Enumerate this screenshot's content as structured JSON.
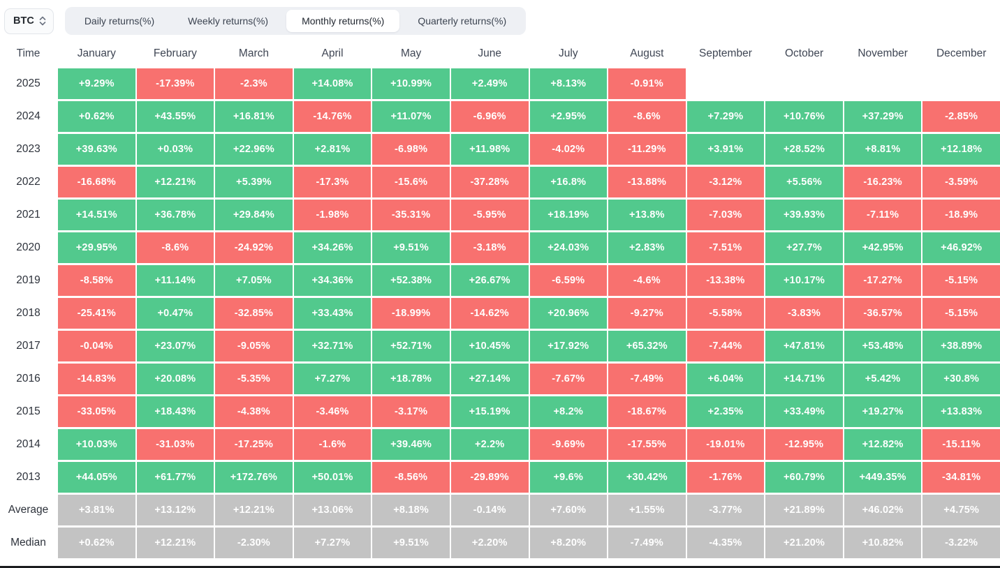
{
  "toolbar": {
    "symbol": "BTC",
    "tabs": [
      {
        "label": "Daily returns(%)",
        "active": false
      },
      {
        "label": "Weekly returns(%)",
        "active": false
      },
      {
        "label": "Monthly returns(%)",
        "active": true
      },
      {
        "label": "Quarterly returns(%)",
        "active": false
      }
    ]
  },
  "table": {
    "corner_header": "Time",
    "month_headers": [
      "January",
      "February",
      "March",
      "April",
      "May",
      "June",
      "July",
      "August",
      "September",
      "October",
      "November",
      "December"
    ],
    "rows": [
      {
        "label": "2025",
        "type": "year",
        "values": [
          "+9.29%",
          "-17.39%",
          "-2.3%",
          "+14.08%",
          "+10.99%",
          "+2.49%",
          "+8.13%",
          "-0.91%",
          "",
          "",
          "",
          ""
        ]
      },
      {
        "label": "2024",
        "type": "year",
        "values": [
          "+0.62%",
          "+43.55%",
          "+16.81%",
          "-14.76%",
          "+11.07%",
          "-6.96%",
          "+2.95%",
          "-8.6%",
          "+7.29%",
          "+10.76%",
          "+37.29%",
          "-2.85%"
        ]
      },
      {
        "label": "2023",
        "type": "year",
        "values": [
          "+39.63%",
          "+0.03%",
          "+22.96%",
          "+2.81%",
          "-6.98%",
          "+11.98%",
          "-4.02%",
          "-11.29%",
          "+3.91%",
          "+28.52%",
          "+8.81%",
          "+12.18%"
        ]
      },
      {
        "label": "2022",
        "type": "year",
        "values": [
          "-16.68%",
          "+12.21%",
          "+5.39%",
          "-17.3%",
          "-15.6%",
          "-37.28%",
          "+16.8%",
          "-13.88%",
          "-3.12%",
          "+5.56%",
          "-16.23%",
          "-3.59%"
        ]
      },
      {
        "label": "2021",
        "type": "year",
        "values": [
          "+14.51%",
          "+36.78%",
          "+29.84%",
          "-1.98%",
          "-35.31%",
          "-5.95%",
          "+18.19%",
          "+13.8%",
          "-7.03%",
          "+39.93%",
          "-7.11%",
          "-18.9%"
        ]
      },
      {
        "label": "2020",
        "type": "year",
        "values": [
          "+29.95%",
          "-8.6%",
          "-24.92%",
          "+34.26%",
          "+9.51%",
          "-3.18%",
          "+24.03%",
          "+2.83%",
          "-7.51%",
          "+27.7%",
          "+42.95%",
          "+46.92%"
        ]
      },
      {
        "label": "2019",
        "type": "year",
        "values": [
          "-8.58%",
          "+11.14%",
          "+7.05%",
          "+34.36%",
          "+52.38%",
          "+26.67%",
          "-6.59%",
          "-4.6%",
          "-13.38%",
          "+10.17%",
          "-17.27%",
          "-5.15%"
        ]
      },
      {
        "label": "2018",
        "type": "year",
        "values": [
          "-25.41%",
          "+0.47%",
          "-32.85%",
          "+33.43%",
          "-18.99%",
          "-14.62%",
          "+20.96%",
          "-9.27%",
          "-5.58%",
          "-3.83%",
          "-36.57%",
          "-5.15%"
        ]
      },
      {
        "label": "2017",
        "type": "year",
        "values": [
          "-0.04%",
          "+23.07%",
          "-9.05%",
          "+32.71%",
          "+52.71%",
          "+10.45%",
          "+17.92%",
          "+65.32%",
          "-7.44%",
          "+47.81%",
          "+53.48%",
          "+38.89%"
        ]
      },
      {
        "label": "2016",
        "type": "year",
        "values": [
          "-14.83%",
          "+20.08%",
          "-5.35%",
          "+7.27%",
          "+18.78%",
          "+27.14%",
          "-7.67%",
          "-7.49%",
          "+6.04%",
          "+14.71%",
          "+5.42%",
          "+30.8%"
        ]
      },
      {
        "label": "2015",
        "type": "year",
        "values": [
          "-33.05%",
          "+18.43%",
          "-4.38%",
          "-3.46%",
          "-3.17%",
          "+15.19%",
          "+8.2%",
          "-18.67%",
          "+2.35%",
          "+33.49%",
          "+19.27%",
          "+13.83%"
        ]
      },
      {
        "label": "2014",
        "type": "year",
        "values": [
          "+10.03%",
          "-31.03%",
          "-17.25%",
          "-1.6%",
          "+39.46%",
          "+2.2%",
          "-9.69%",
          "-17.55%",
          "-19.01%",
          "-12.95%",
          "+12.82%",
          "-15.11%"
        ]
      },
      {
        "label": "2013",
        "type": "year",
        "values": [
          "+44.05%",
          "+61.77%",
          "+172.76%",
          "+50.01%",
          "-8.56%",
          "-29.89%",
          "+9.6%",
          "+30.42%",
          "-1.76%",
          "+60.79%",
          "+449.35%",
          "-34.81%"
        ]
      },
      {
        "label": "Average",
        "type": "summary",
        "values": [
          "+3.81%",
          "+13.12%",
          "+12.21%",
          "+13.06%",
          "+8.18%",
          "-0.14%",
          "+7.60%",
          "+1.55%",
          "-3.77%",
          "+21.89%",
          "+46.02%",
          "+4.75%"
        ]
      },
      {
        "label": "Median",
        "type": "summary",
        "values": [
          "+0.62%",
          "+12.21%",
          "-2.30%",
          "+7.27%",
          "+9.51%",
          "+2.20%",
          "+8.20%",
          "-7.49%",
          "-4.35%",
          "+21.20%",
          "+10.82%",
          "-3.22%"
        ]
      }
    ]
  },
  "colors": {
    "positive_bg": "#52c98d",
    "negative_bg": "#f8716f",
    "summary_bg": "#c3c3c3",
    "cell_text": "#ffffff",
    "tabbar_bg": "#eef0f4",
    "active_tab_bg": "#ffffff"
  }
}
